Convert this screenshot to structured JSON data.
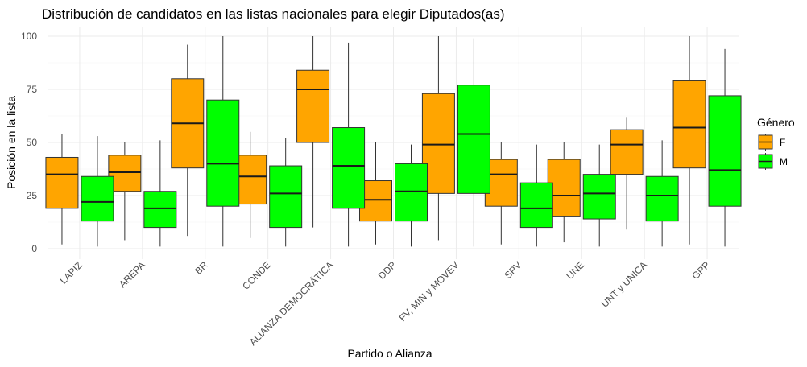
{
  "chart_data": {
    "type": "box",
    "title": "Distribución de candidatos en las listas nacionales para elegir Diputados(as)",
    "xlabel": "Partido o Alianza",
    "ylabel": "Posición en la lista",
    "ylim": [
      0,
      100
    ],
    "yticks": [
      0,
      25,
      50,
      75,
      100
    ],
    "grid": true,
    "legend": {
      "title": "Género",
      "placement": "right"
    },
    "categories": [
      "LAPIZ",
      "AREPA",
      "BR",
      "CONDE",
      "ALIANZA DEMOCRÁTICA",
      "DDP",
      "FV, MIN y MOVEV",
      "SPV",
      "UNE",
      "UNT y UNICA",
      "GPP"
    ],
    "series": [
      {
        "name": "F",
        "color": "#FFA500",
        "boxes": [
          {
            "min": 2,
            "q1": 19,
            "median": 35,
            "q3": 43,
            "max": 54
          },
          {
            "min": 4,
            "q1": 27,
            "median": 36,
            "q3": 44,
            "max": 50
          },
          {
            "min": 6,
            "q1": 38,
            "median": 59,
            "q3": 80,
            "max": 96
          },
          {
            "min": 5,
            "q1": 21,
            "median": 34,
            "q3": 44,
            "max": 55
          },
          {
            "min": 10,
            "q1": 50,
            "median": 75,
            "q3": 84,
            "max": 100
          },
          {
            "min": 2,
            "q1": 13,
            "median": 23,
            "q3": 32,
            "max": 50
          },
          {
            "min": 4,
            "q1": 26,
            "median": 49,
            "q3": 73,
            "max": 100
          },
          {
            "min": 2,
            "q1": 20,
            "median": 35,
            "q3": 42,
            "max": 50
          },
          {
            "min": 3,
            "q1": 15,
            "median": 25,
            "q3": 42,
            "max": 50
          },
          {
            "min": 9,
            "q1": 35,
            "median": 49,
            "q3": 56,
            "max": 62
          },
          {
            "min": 2,
            "q1": 38,
            "median": 57,
            "q3": 79,
            "max": 100
          }
        ]
      },
      {
        "name": "M",
        "color": "#00FF00",
        "boxes": [
          {
            "min": 1,
            "q1": 13,
            "median": 22,
            "q3": 34,
            "max": 53
          },
          {
            "min": 1,
            "q1": 10,
            "median": 19,
            "q3": 27,
            "max": 51
          },
          {
            "min": 1,
            "q1": 20,
            "median": 40,
            "q3": 70,
            "max": 100
          },
          {
            "min": 1,
            "q1": 10,
            "median": 26,
            "q3": 39,
            "max": 52
          },
          {
            "min": 1,
            "q1": 19,
            "median": 39,
            "q3": 57,
            "max": 97
          },
          {
            "min": 1,
            "q1": 13,
            "median": 27,
            "q3": 40,
            "max": 49
          },
          {
            "min": 1,
            "q1": 26,
            "median": 54,
            "q3": 77,
            "max": 99
          },
          {
            "min": 1,
            "q1": 10,
            "median": 19,
            "q3": 31,
            "max": 49
          },
          {
            "min": 1,
            "q1": 14,
            "median": 26,
            "q3": 35,
            "max": 49
          },
          {
            "min": 1,
            "q1": 13,
            "median": 25,
            "q3": 34,
            "max": 51
          },
          {
            "min": 1,
            "q1": 20,
            "median": 37,
            "q3": 72,
            "max": 94
          }
        ]
      }
    ]
  }
}
